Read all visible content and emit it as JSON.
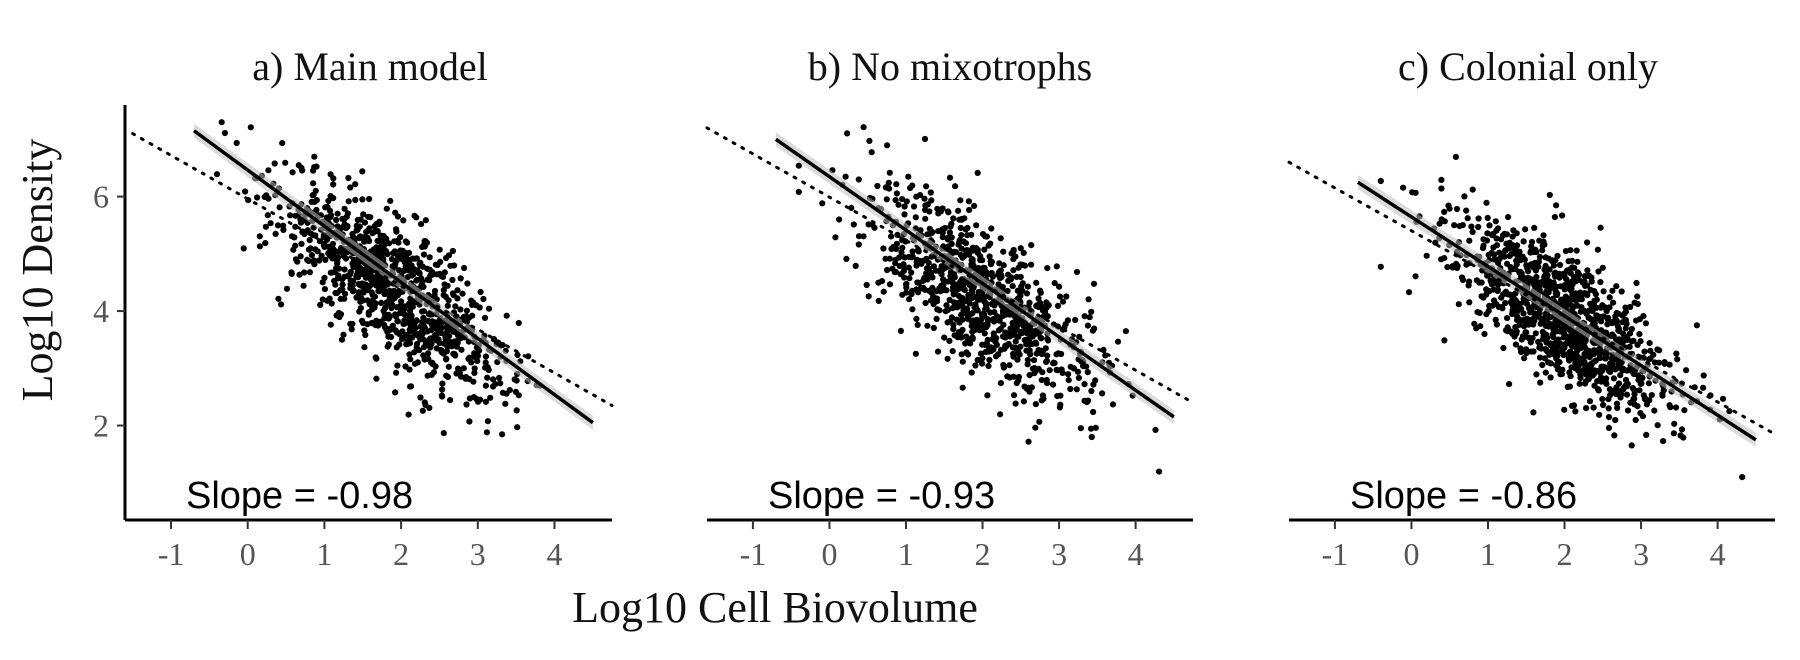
{
  "chart_data": {
    "type": "scatter",
    "xlabel": "Log10 Cell Biovolume",
    "ylabel": "Log10 Density",
    "xlim": [
      -1.6,
      4.75
    ],
    "ylim": [
      0.35,
      7.6
    ],
    "x_ticks": [
      "-1",
      "0",
      "1",
      "2",
      "3",
      "4"
    ],
    "x_tick_values": [
      -1,
      0,
      1,
      2,
      3,
      4
    ],
    "y_ticks": [
      "2",
      "4",
      "6"
    ],
    "y_tick_values": [
      2,
      4,
      6
    ],
    "grid": false,
    "point_color": "#000000",
    "panels": [
      {
        "title": "a) Main model",
        "annotation": "Slope = -0.98",
        "slope": -0.98,
        "fit_line": {
          "x": [
            -0.7,
            4.5
          ],
          "y": [
            7.15,
            2.05
          ]
        },
        "reference_line": {
          "x": [
            -1.5,
            4.75
          ],
          "y": [
            7.1,
            2.35
          ]
        },
        "point_count": 1000,
        "center_x": 1.9,
        "center_y": 4.4,
        "sd_x": 0.75,
        "residual_sd": 0.6
      },
      {
        "title": "b) No mixotrophs",
        "annotation": "Slope = -0.93",
        "slope": -0.93,
        "fit_line": {
          "x": [
            -0.7,
            4.5
          ],
          "y": [
            7.0,
            2.15
          ]
        },
        "reference_line": {
          "x": [
            -1.6,
            4.75
          ],
          "y": [
            7.2,
            2.4
          ]
        },
        "point_count": 900,
        "center_x": 2.0,
        "center_y": 4.25,
        "sd_x": 0.72,
        "residual_sd": 0.65
      },
      {
        "title": "c) Colonial only",
        "annotation": "Slope = -0.86",
        "slope": -0.86,
        "fit_line": {
          "x": [
            -0.7,
            4.5
          ],
          "y": [
            6.25,
            1.75
          ]
        },
        "reference_line": {
          "x": [
            -1.6,
            4.75
          ],
          "y": [
            6.6,
            1.85
          ]
        },
        "point_count": 1100,
        "center_x": 2.0,
        "center_y": 3.85,
        "sd_x": 0.72,
        "residual_sd": 0.6
      }
    ]
  }
}
